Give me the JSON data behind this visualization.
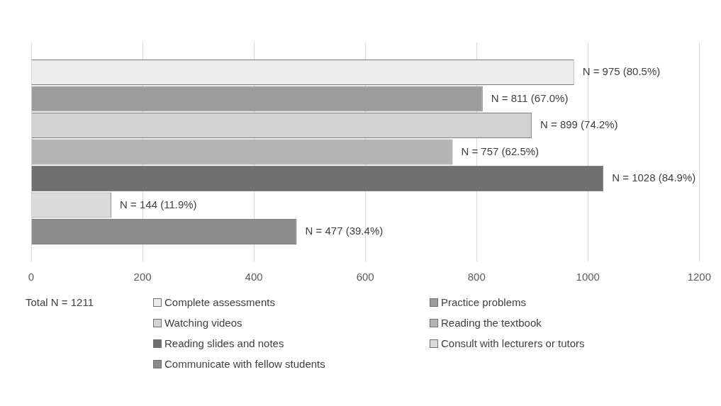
{
  "chart_data": {
    "type": "bar",
    "orientation": "horizontal",
    "categories": [
      null
    ],
    "series": [
      {
        "name": "Complete assessments",
        "color": "#ececec",
        "values": [
          975
        ],
        "value_labels": [
          "N = 975 (80.5%)"
        ]
      },
      {
        "name": "Practice problems",
        "color": "#9c9c9c",
        "values": [
          811
        ],
        "value_labels": [
          "N = 811 (67.0%)"
        ]
      },
      {
        "name": "Watching videos",
        "color": "#d2d2d2",
        "values": [
          899
        ],
        "value_labels": [
          "N = 899 (74.2%)"
        ]
      },
      {
        "name": "Reading the textbook",
        "color": "#b4b4b4",
        "values": [
          757
        ],
        "value_labels": [
          "N = 757 (62.5%)"
        ]
      },
      {
        "name": "Reading slides and notes",
        "color": "#707070",
        "values": [
          1028
        ],
        "value_labels": [
          "N = 1028 (84.9%)"
        ]
      },
      {
        "name": "Consult with lecturers or tutors",
        "color": "#dadada",
        "values": [
          144
        ],
        "value_labels": [
          "N = 144 (11.9%)"
        ]
      },
      {
        "name": "Communicate with fellow students",
        "color": "#8c8c8c",
        "values": [
          477
        ],
        "value_labels": [
          "N = 477 (39.4%)"
        ]
      }
    ],
    "xlim": [
      0,
      1200
    ],
    "xticks": [
      0,
      200,
      400,
      600,
      800,
      1000,
      1200
    ],
    "grid": "x",
    "legend": "bottom",
    "annotations": [
      "Total N = 1211"
    ]
  }
}
